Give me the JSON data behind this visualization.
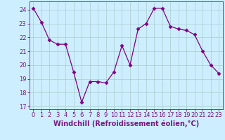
{
  "x": [
    0,
    1,
    2,
    3,
    4,
    5,
    6,
    7,
    8,
    9,
    10,
    11,
    12,
    13,
    14,
    15,
    16,
    17,
    18,
    19,
    20,
    21,
    22,
    23
  ],
  "y": [
    24.1,
    23.1,
    21.8,
    21.5,
    21.5,
    19.5,
    17.3,
    18.8,
    18.8,
    18.7,
    19.5,
    21.4,
    20.0,
    22.6,
    23.0,
    24.1,
    24.1,
    22.8,
    22.6,
    22.5,
    22.2,
    21.0,
    20.0,
    19.4
  ],
  "line_color": "#800080",
  "marker": "D",
  "marker_size": 2.5,
  "bg_color": "#cceeff",
  "grid_color": "#aacccc",
  "xlabel": "Windchill (Refroidissement éolien,°C)",
  "xlabel_fontsize": 7,
  "tick_fontsize": 6,
  "ylim": [
    16.8,
    24.6
  ],
  "yticks": [
    17,
    18,
    19,
    20,
    21,
    22,
    23,
    24
  ],
  "xlim": [
    -0.5,
    23.5
  ],
  "xticks": [
    0,
    1,
    2,
    3,
    4,
    5,
    6,
    7,
    8,
    9,
    10,
    11,
    12,
    13,
    14,
    15,
    16,
    17,
    18,
    19,
    20,
    21,
    22,
    23
  ],
  "line_color_rgb": "#7b1a7b",
  "spine_color": "#7b1a7b",
  "label_color": "#7b1a7b"
}
